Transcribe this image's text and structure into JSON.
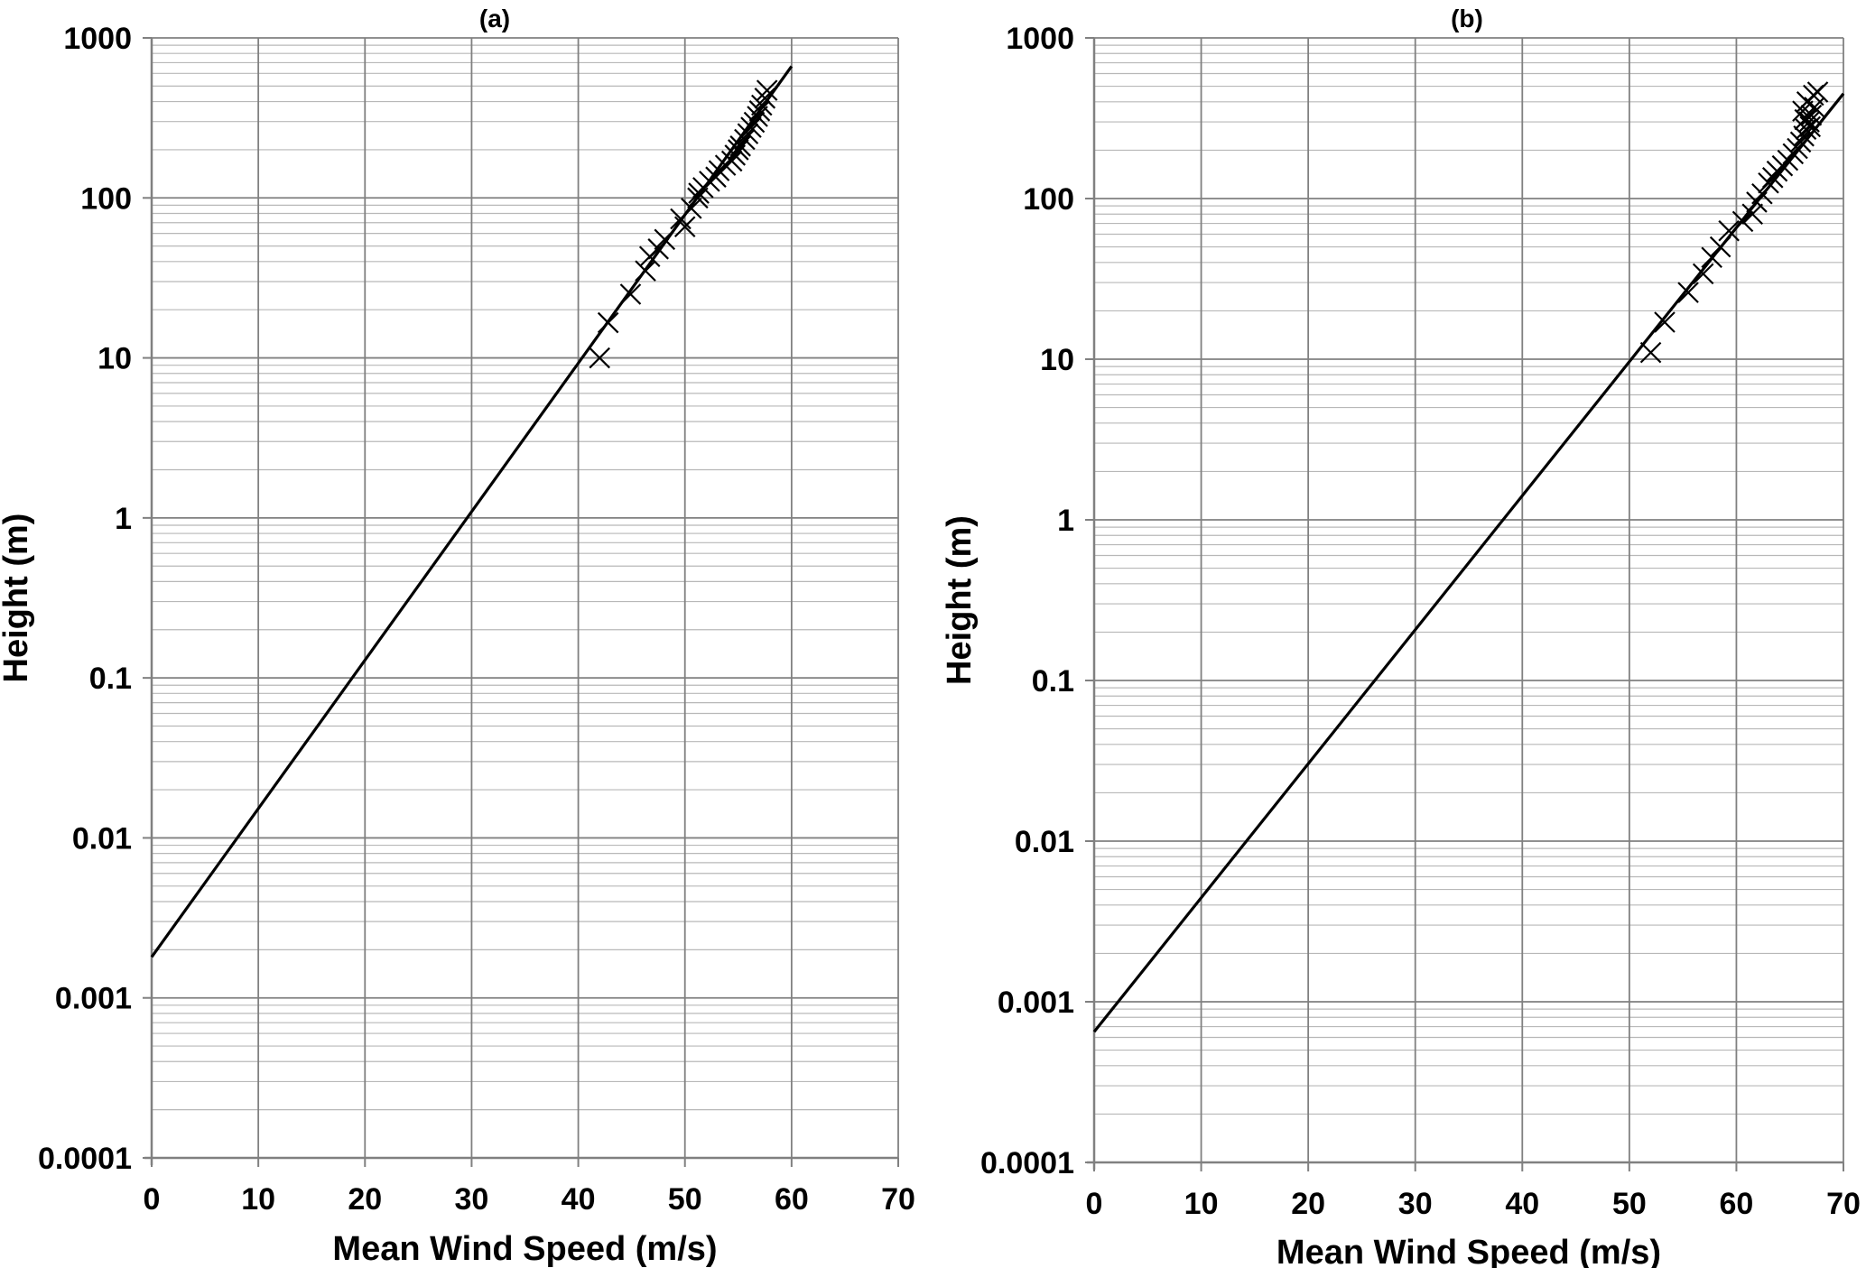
{
  "chart_data": [
    {
      "type": "scatter",
      "title": "(a)",
      "xlabel": "Mean Wind Speed (m/s)",
      "ylabel": "Height (m)",
      "xlim": [
        0,
        70
      ],
      "ylim": [
        0.0001,
        1000
      ],
      "yscale": "log",
      "grid": true,
      "x_ticks": [
        "0",
        "10",
        "20",
        "30",
        "40",
        "50",
        "60",
        "70"
      ],
      "y_ticks": [
        "0.0001",
        "0.001",
        "0.01",
        "0.1",
        "1",
        "10",
        "100",
        "1000"
      ],
      "series": [
        {
          "type": "scatter",
          "marker": "x",
          "x": [
            42.0,
            42.8,
            44.9,
            46.3,
            46.7,
            47.5,
            48.1,
            49.6,
            50.0,
            50.6,
            51.2,
            51.3,
            51.7,
            52.3,
            52.9,
            53.2,
            53.8,
            54.4,
            54.7,
            55.0,
            55.2,
            55.6,
            55.9,
            56.2,
            56.5,
            56.8,
            57.0,
            57.2,
            57.5,
            57.7
          ],
          "y": [
            10,
            16.6,
            25,
            35,
            43,
            48,
            55,
            74,
            66,
            86,
            100,
            107,
            116,
            127,
            135,
            148,
            160,
            170,
            185,
            200,
            211,
            232,
            252,
            276,
            297,
            323,
            350,
            380,
            420,
            470
          ]
        },
        {
          "type": "line",
          "x": [
            0,
            60
          ],
          "y": [
            0.0018,
            665
          ]
        }
      ]
    },
    {
      "type": "scatter",
      "title": "(b)",
      "xlabel": "Mean Wind Speed (m/s)",
      "ylabel": "Height (m)",
      "xlim": [
        0,
        70
      ],
      "ylim": [
        0.0001,
        1000
      ],
      "yscale": "log",
      "grid": true,
      "x_ticks": [
        "0",
        "10",
        "20",
        "30",
        "40",
        "50",
        "60",
        "70"
      ],
      "y_ticks": [
        "0.0001",
        "0.001",
        "0.01",
        "0.1",
        "1",
        "10",
        "100",
        "1000"
      ],
      "series": [
        {
          "type": "scatter",
          "marker": "x",
          "x": [
            52.0,
            53.3,
            55.5,
            56.9,
            57.7,
            58.5,
            59.3,
            60.6,
            61.5,
            61.9,
            62.4,
            63.0,
            63.4,
            63.8,
            64.3,
            64.8,
            65.3,
            65.7,
            66.0,
            66.3,
            66.5,
            66.8,
            67.0,
            67.3,
            66.6,
            67.2,
            66.4,
            66.9,
            67.6,
            66.2
          ],
          "y": [
            11,
            17,
            26,
            34,
            43,
            50,
            63,
            72,
            80,
            95,
            107,
            125,
            135,
            148,
            160,
            173,
            190,
            205,
            225,
            245,
            270,
            300,
            330,
            370,
            400,
            440,
            310,
            280,
            460,
            350
          ]
        },
        {
          "type": "line",
          "x": [
            0,
            70
          ],
          "y": [
            0.00065,
            450
          ]
        }
      ]
    }
  ]
}
